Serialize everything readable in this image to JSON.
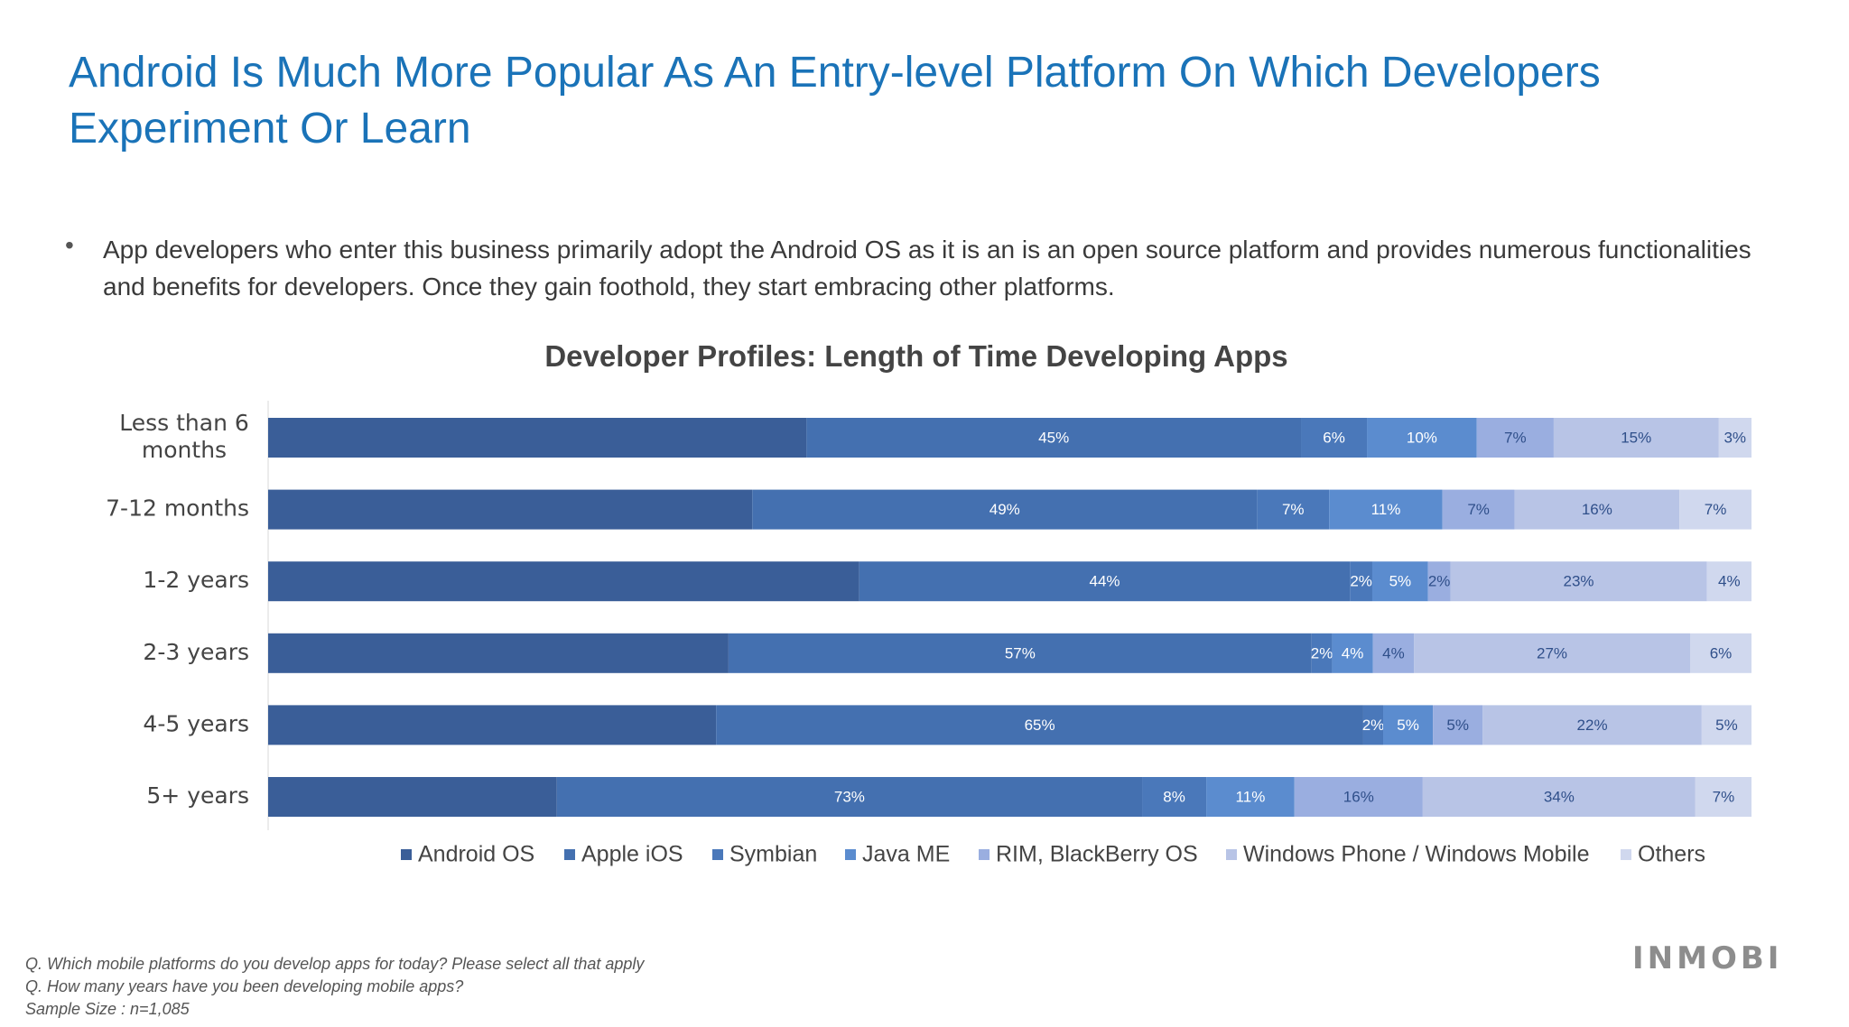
{
  "slide": {
    "title": "Android Is Much More Popular As An Entry-level Platform On Which Developers Experiment Or Learn",
    "bullet": "App developers who enter this business primarily adopt the Android OS as it is  an is an open source platform and provides numerous functionalities and benefits for developers. Once they gain foothold, they start embracing other platforms.",
    "bullet_marker": "•"
  },
  "chart_data": {
    "type": "bar",
    "orientation": "horizontal",
    "stacked": true,
    "title": "Developer Profiles: Length of Time Developing Apps",
    "categories": [
      "Less than 6 months",
      "7-12 months",
      "1-2 years",
      "2-3 years",
      "4-5 years",
      "5+ years"
    ],
    "series": [
      {
        "name": "Android OS",
        "color": "#3a5e98",
        "values": [
          49,
          47,
          53,
          45,
          45,
          36
        ]
      },
      {
        "name": "Apple iOS",
        "color": "#4470b0",
        "values": [
          45,
          49,
          44,
          57,
          65,
          73
        ]
      },
      {
        "name": "Symbian",
        "color": "#4a78ba",
        "values": [
          6,
          7,
          2,
          2,
          2,
          8
        ]
      },
      {
        "name": "Java ME",
        "color": "#5b8ccf",
        "values": [
          10,
          11,
          5,
          4,
          5,
          11
        ]
      },
      {
        "name": "RIM, BlackBerry OS",
        "color": "#9aaee0",
        "values": [
          7,
          7,
          2,
          4,
          5,
          16
        ]
      },
      {
        "name": "Windows Phone / Windows Mobile",
        "color": "#b8c4e6",
        "values": [
          15,
          16,
          23,
          27,
          22,
          34
        ]
      },
      {
        "name": "Others",
        "color": "#d0d8ee",
        "values": [
          3,
          7,
          4,
          6,
          5,
          7
        ]
      }
    ],
    "data_labels": [
      [
        "",
        "45%",
        "6%",
        "10%",
        "7%",
        "15%",
        "3%"
      ],
      [
        "",
        "49%",
        "7%",
        "11%",
        "7%",
        "16%",
        "7%"
      ],
      [
        "",
        "44%",
        "2%",
        "5%",
        "2%",
        "23%",
        "4%"
      ],
      [
        "",
        "57%",
        "2%",
        "4%",
        "4%",
        "27%",
        "6%"
      ],
      [
        "",
        "65%",
        "2%",
        "5%",
        "5%",
        "22%",
        "5%"
      ],
      [
        "",
        "73%",
        "8%",
        "11%",
        "16%",
        "34%",
        "7%"
      ]
    ],
    "legend_position": "bottom",
    "grid": false
  },
  "footnotes": [
    "Q. Which mobile platforms do you develop apps for today? Please select all that apply",
    "Q. How many years have you been developing mobile apps?",
    "Sample Size : n=1,085"
  ],
  "logo": "INMOBI"
}
